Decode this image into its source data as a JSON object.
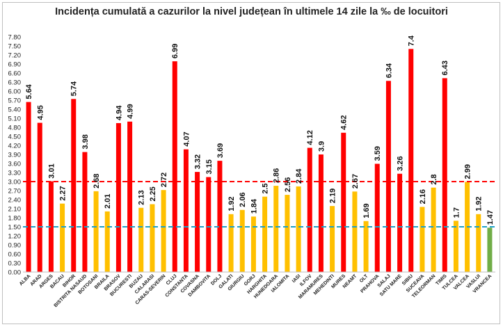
{
  "chart_data": {
    "type": "bar",
    "title": "Incidența cumulată a cazurilor la nivel județean în ultimele 14 zile la ‰ de locuitori",
    "xlabel": "",
    "ylabel": "",
    "ylim": [
      0,
      7.8
    ],
    "yticks": [
      "0.00",
      "0.30",
      "0.60",
      "0.90",
      "1.20",
      "1.50",
      "1.80",
      "2.10",
      "2.40",
      "2.70",
      "3.00",
      "3.30",
      "3.60",
      "3.90",
      "4.20",
      "4.50",
      "4.80",
      "5.10",
      "5.40",
      "5.70",
      "6.00",
      "6.30",
      "6.60",
      "6.90",
      "7.20",
      "7.50",
      "7.80"
    ],
    "categories": [
      "ALBA",
      "ARAD",
      "ARGES",
      "BACAU",
      "BIHOR",
      "BISTRITA NASAUD",
      "BOTOSANI",
      "BRAILA",
      "BRASOV",
      "BUCURESTI",
      "BUZAU",
      "CALARASI",
      "CARAS-SEVERIN",
      "CLUJ",
      "CONSTANTA",
      "COVASNA",
      "DAMBOVITA",
      "DOLJ",
      "GALATI",
      "GIURGIU",
      "GORJ",
      "HARGHITA",
      "HUNEDOARA",
      "IALOMITA",
      "IASI",
      "ILFOV",
      "MARAMURES",
      "MEHEDINTI",
      "MURES",
      "NEAMT",
      "OLT",
      "PRAHOVA",
      "SALAJ",
      "SATU MARE",
      "SIBIU",
      "SUCEAVA",
      "TELEORMAN",
      "TIMIS",
      "TULCEA",
      "VALCEA",
      "VASLUI",
      "VRANCEA"
    ],
    "values": [
      5.64,
      4.95,
      3.01,
      2.27,
      5.74,
      3.98,
      2.68,
      2.01,
      4.94,
      4.99,
      2.13,
      2.25,
      2.72,
      6.99,
      4.07,
      3.32,
      3.15,
      3.69,
      1.92,
      2.06,
      1.84,
      2.5,
      2.86,
      2.56,
      2.84,
      4.12,
      3.9,
      2.19,
      4.62,
      2.67,
      1.69,
      3.59,
      6.34,
      3.26,
      7.4,
      2.16,
      2.8,
      6.43,
      1.7,
      2.99,
      1.92,
      1.47
    ],
    "value_labels": [
      "5.64",
      "4.95",
      "3.01",
      "2.27",
      "5.74",
      "3.98",
      "2.68",
      "2.01",
      "4.94",
      "4.99",
      "2.13",
      "2.25",
      "2.72",
      "6.99",
      "4.07",
      "3.32",
      "3.15",
      "3.69",
      "1.92",
      "2.06",
      "1.84",
      "2.5",
      "2.86",
      "2.56",
      "2.84",
      "4.12",
      "3.9",
      "2.19",
      "4.62",
      "2.67",
      "1.69",
      "3.59",
      "6.34",
      "3.26",
      "7.4",
      "2.16",
      "2.8",
      "6.43",
      "1.7",
      "2.99",
      "1.92",
      "1.47"
    ],
    "thresholds": [
      {
        "value": 3.0,
        "color": "#ff0000"
      },
      {
        "value": 1.5,
        "color": "#1ca0c8"
      }
    ],
    "colors": {
      "high": "#ff0000",
      "mid": "#ffc000",
      "low": "#70ad47"
    },
    "grid": false,
    "legend": "none"
  }
}
